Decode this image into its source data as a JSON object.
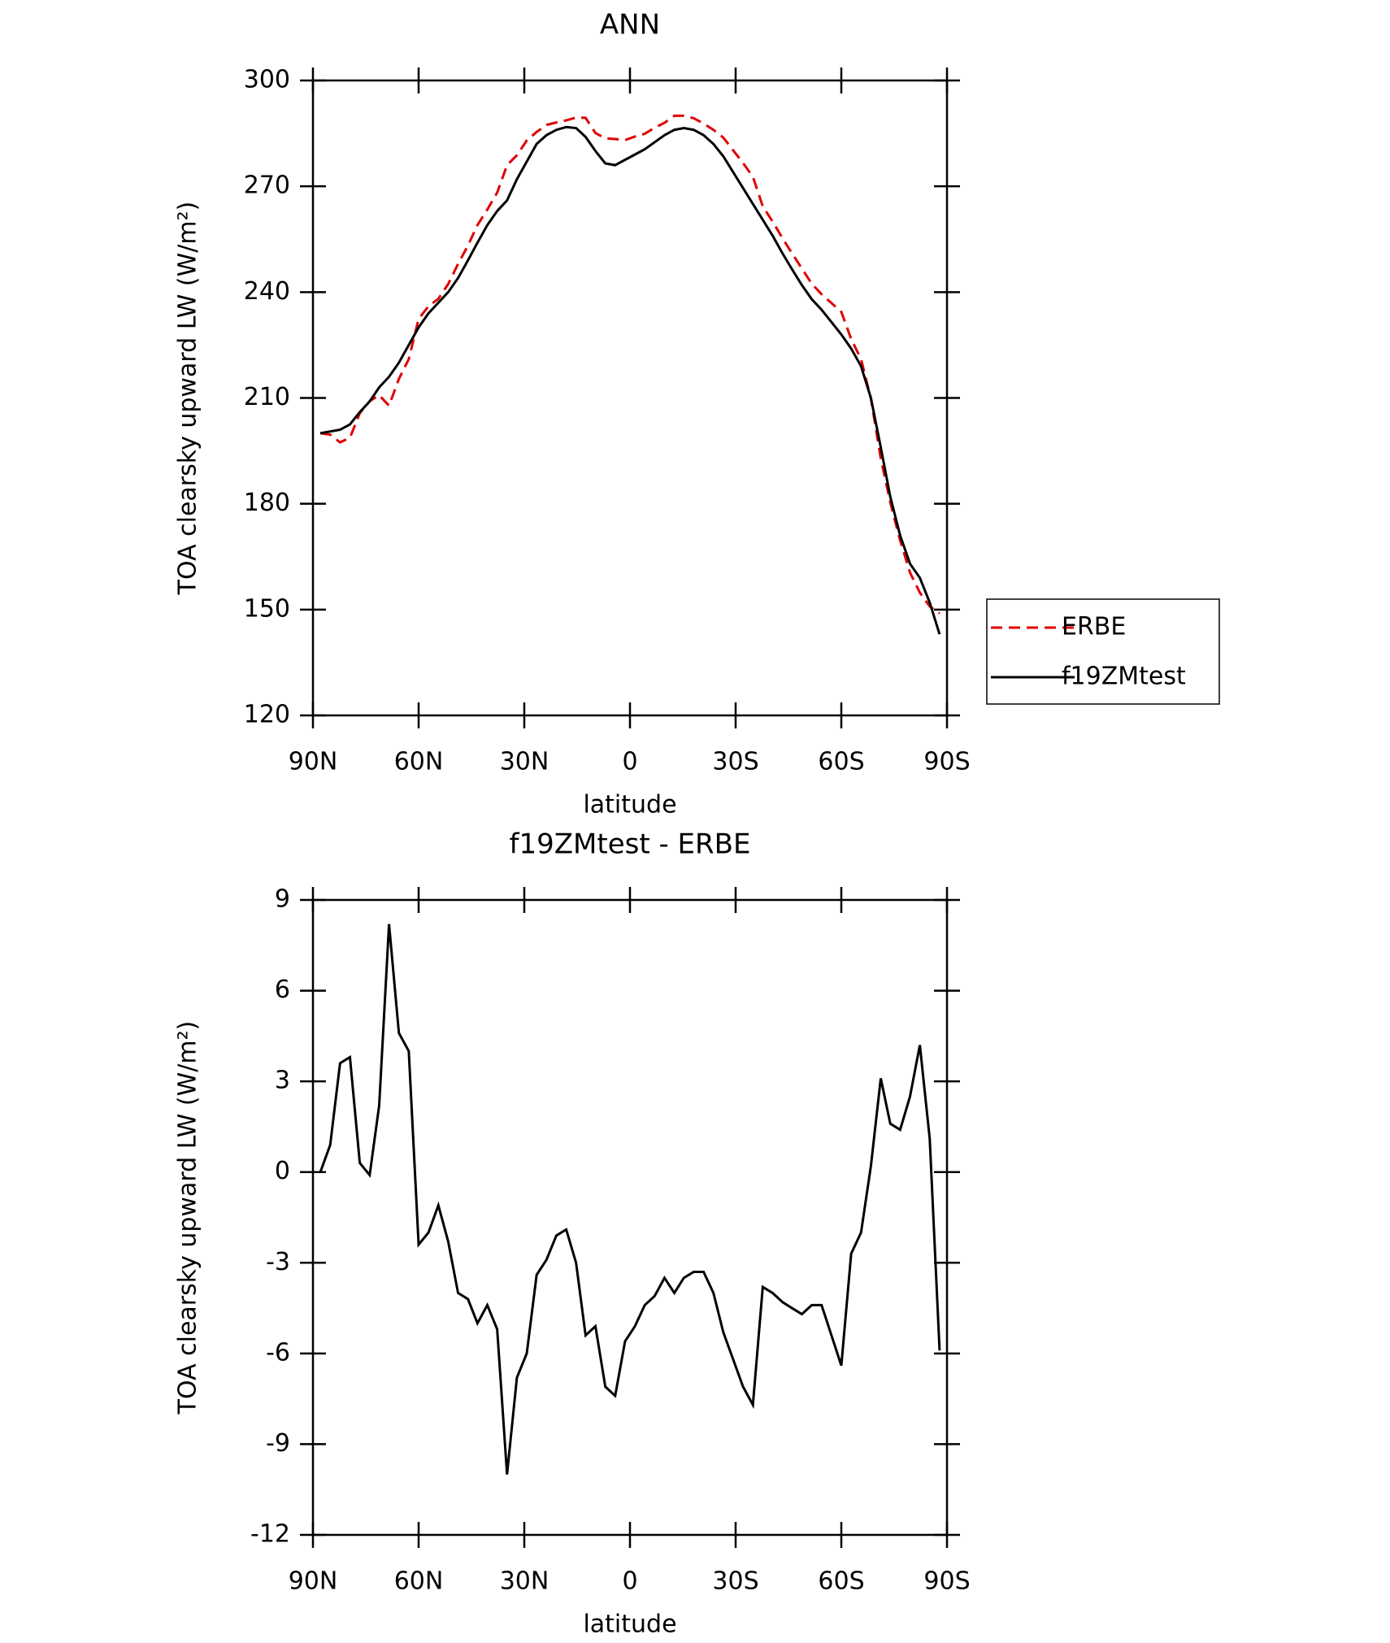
{
  "chart_data": [
    {
      "type": "line",
      "title": "ANN",
      "xlabel": "latitude",
      "ylabel": "TOA clearsky upward LW (W/m²)",
      "x": [
        87.9,
        85.1,
        82.3,
        79.5,
        76.7,
        73.9,
        71.2,
        68.4,
        65.6,
        62.8,
        60.0,
        57.2,
        54.4,
        51.6,
        48.8,
        46.0,
        43.3,
        40.5,
        37.7,
        34.9,
        32.1,
        29.3,
        26.5,
        23.7,
        20.9,
        18.1,
        15.3,
        12.6,
        9.8,
        7.0,
        4.2,
        1.4,
        -1.4,
        -4.2,
        -7.0,
        -9.8,
        -12.6,
        -15.3,
        -18.1,
        -20.9,
        -23.7,
        -26.5,
        -29.3,
        -32.1,
        -34.9,
        -37.7,
        -40.5,
        -43.3,
        -46.0,
        -48.8,
        -51.6,
        -54.4,
        -57.2,
        -60.0,
        -62.8,
        -65.6,
        -68.4,
        -71.2,
        -73.9,
        -76.7,
        -79.5,
        -82.3,
        -85.1,
        -87.9
      ],
      "series": [
        {
          "name": "ERBE",
          "color": "#e00000",
          "line_style": "dashed",
          "values": [
            200.0,
            199.6,
            197.4,
            198.7,
            205.7,
            209.1,
            210.8,
            207.8,
            215.4,
            221.0,
            232.4,
            236.0,
            238.1,
            242.3,
            248.0,
            253.2,
            259.0,
            263.4,
            268.2,
            276.0,
            278.8,
            283.0,
            285.4,
            287.4,
            288.1,
            288.7,
            289.5,
            289.4,
            285.1,
            283.6,
            283.4,
            283.1,
            284.1,
            284.9,
            286.6,
            288.0,
            290.0,
            290.0,
            289.3,
            287.8,
            286.0,
            283.8,
            280.2,
            276.6,
            272.7,
            264.3,
            260.0,
            255.3,
            251.0,
            246.7,
            242.4,
            239.4,
            236.9,
            234.4,
            226.7,
            221.0,
            209.8,
            192.9,
            180.4,
            169.6,
            160.5,
            154.8,
            150.9,
            148.9
          ]
        },
        {
          "name": "f19ZMtest",
          "color": "#000000",
          "line_style": "solid",
          "values": [
            200,
            200.5,
            201,
            202.5,
            206,
            209,
            213,
            216,
            220,
            225,
            230,
            234,
            237,
            240,
            244,
            249,
            254,
            259,
            263,
            266,
            272,
            277,
            282,
            284.5,
            286,
            286.8,
            286.5,
            284,
            280,
            276.5,
            276,
            277.5,
            279,
            280.5,
            282.5,
            284.5,
            286,
            286.5,
            286,
            284.5,
            282,
            278.5,
            274,
            269.5,
            265,
            260.5,
            256,
            251,
            246.5,
            242,
            238,
            235,
            231.5,
            228,
            224,
            219,
            210,
            196,
            182,
            171,
            163,
            159,
            152,
            143
          ]
        }
      ],
      "xlim": [
        90,
        -90
      ],
      "xticks": [
        {
          "value": 90,
          "label": "90N"
        },
        {
          "value": 60,
          "label": "60N"
        },
        {
          "value": 30,
          "label": "30N"
        },
        0,
        {
          "value": -30,
          "label": "30S"
        },
        {
          "value": -60,
          "label": "60S"
        },
        {
          "value": -90,
          "label": "90S"
        }
      ],
      "ylim": [
        120,
        300
      ],
      "yticks": [
        120,
        150,
        180,
        210,
        240,
        270,
        300
      ],
      "legend": "right"
    },
    {
      "type": "line",
      "title": "f19ZMtest - ERBE",
      "xlabel": "latitude",
      "ylabel": "TOA clearsky upward LW (W/m²)",
      "x": [
        87.9,
        85.1,
        82.3,
        79.5,
        76.7,
        73.9,
        71.2,
        68.4,
        65.6,
        62.8,
        60.0,
        57.2,
        54.4,
        51.6,
        48.8,
        46.0,
        43.3,
        40.5,
        37.7,
        34.9,
        32.1,
        29.3,
        26.5,
        23.7,
        20.9,
        18.1,
        15.3,
        12.6,
        9.8,
        7.0,
        4.2,
        1.4,
        -1.4,
        -4.2,
        -7.0,
        -9.8,
        -12.6,
        -15.3,
        -18.1,
        -20.9,
        -23.7,
        -26.5,
        -29.3,
        -32.1,
        -34.9,
        -37.7,
        -40.5,
        -43.3,
        -46.0,
        -48.8,
        -51.6,
        -54.4,
        -57.2,
        -60.0,
        -62.8,
        -65.6,
        -68.4,
        -71.2,
        -73.9,
        -76.7,
        -79.5,
        -82.3,
        -85.1,
        -87.9
      ],
      "series": [
        {
          "color": "#000000",
          "line_style": "solid",
          "values": [
            0.0,
            0.9,
            3.6,
            3.8,
            0.3,
            -0.1,
            2.2,
            8.2,
            4.6,
            4.0,
            -2.4,
            -2.0,
            -1.1,
            -2.3,
            -4.0,
            -4.2,
            -5.0,
            -4.4,
            -5.2,
            -10.0,
            -6.8,
            -6.0,
            -3.4,
            -2.9,
            -2.1,
            -1.9,
            -3.0,
            -5.4,
            -5.1,
            -7.1,
            -7.4,
            -5.6,
            -5.1,
            -4.4,
            -4.1,
            -3.5,
            -4.0,
            -3.5,
            -3.3,
            -3.3,
            -4.0,
            -5.3,
            -6.2,
            -7.1,
            -7.7,
            -3.8,
            -4.0,
            -4.3,
            -4.5,
            -4.7,
            -4.4,
            -4.4,
            -5.4,
            -6.4,
            -2.7,
            -2.0,
            0.2,
            3.1,
            1.6,
            1.4,
            2.5,
            4.2,
            1.1,
            -5.9
          ]
        }
      ],
      "xlim": [
        90,
        -90
      ],
      "xticks": [
        {
          "value": 90,
          "label": "90N"
        },
        {
          "value": 60,
          "label": "60N"
        },
        {
          "value": 30,
          "label": "30N"
        },
        0,
        {
          "value": -30,
          "label": "30S"
        },
        {
          "value": -60,
          "label": "60S"
        },
        {
          "value": -90,
          "label": "90S"
        }
      ],
      "ylim": [
        -12,
        9
      ],
      "yticks": [
        -12,
        -9,
        -6,
        -3,
        0,
        3,
        6,
        9
      ]
    }
  ]
}
